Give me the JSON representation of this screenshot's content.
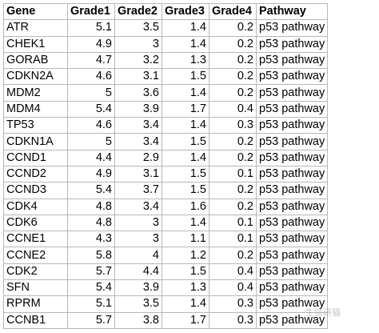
{
  "table": {
    "headers": [
      "Gene",
      "Grade1",
      "Grade2",
      "Grade3",
      "Grade4",
      "Pathway"
    ],
    "rows": [
      [
        "ATR",
        "5.1",
        "3.5",
        "1.4",
        "0.2",
        "p53 pathway"
      ],
      [
        "CHEK1",
        "4.9",
        "3",
        "1.4",
        "0.2",
        "p53 pathway"
      ],
      [
        "GORAB",
        "4.7",
        "3.2",
        "1.3",
        "0.2",
        "p53 pathway"
      ],
      [
        "CDKN2A",
        "4.6",
        "3.1",
        "1.5",
        "0.2",
        "p53 pathway"
      ],
      [
        "MDM2",
        "5",
        "3.6",
        "1.4",
        "0.2",
        "p53 pathway"
      ],
      [
        "MDM4",
        "5.4",
        "3.9",
        "1.7",
        "0.4",
        "p53 pathway"
      ],
      [
        "TP53",
        "4.6",
        "3.4",
        "1.4",
        "0.3",
        "p53 pathway"
      ],
      [
        "CDKN1A",
        "5",
        "3.4",
        "1.5",
        "0.2",
        "p53 pathway"
      ],
      [
        "CCND1",
        "4.4",
        "2.9",
        "1.4",
        "0.2",
        "p53 pathway"
      ],
      [
        "CCND2",
        "4.9",
        "3.1",
        "1.5",
        "0.1",
        "p53 pathway"
      ],
      [
        "CCND3",
        "5.4",
        "3.7",
        "1.5",
        "0.2",
        "p53 pathway"
      ],
      [
        "CDK4",
        "4.8",
        "3.4",
        "1.6",
        "0.2",
        "p53 pathway"
      ],
      [
        "CDK6",
        "4.8",
        "3",
        "1.4",
        "0.1",
        "p53 pathway"
      ],
      [
        "CCNE1",
        "4.3",
        "3",
        "1.1",
        "0.1",
        "p53 pathway"
      ],
      [
        "CCNE2",
        "5.8",
        "4",
        "1.2",
        "0.2",
        "p53 pathway"
      ],
      [
        "CDK2",
        "5.7",
        "4.4",
        "1.5",
        "0.4",
        "p53 pathway"
      ],
      [
        "SFN",
        "5.4",
        "3.9",
        "1.3",
        "0.4",
        "p53 pathway"
      ],
      [
        "RPRM",
        "5.1",
        "3.5",
        "1.4",
        "0.3",
        "p53 pathway"
      ],
      [
        "CCNB1",
        "5.7",
        "3.8",
        "1.7",
        "0.3",
        "p53 pathway"
      ]
    ]
  },
  "watermark": {
    "text": "生信研猫"
  }
}
